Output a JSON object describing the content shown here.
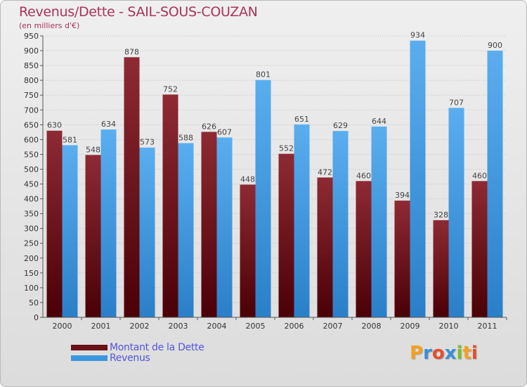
{
  "chart_data": {
    "type": "bar",
    "title": "Revenus/Dette - SAIL-SOUS-COUZAN",
    "subtitle": "(en milliers d'€)",
    "categories": [
      "2000",
      "2001",
      "2002",
      "2003",
      "2004",
      "2005",
      "2006",
      "2007",
      "2008",
      "2009",
      "2010",
      "2011"
    ],
    "series": [
      {
        "name": "Montant de la Dette",
        "color": "#7a1a24",
        "values": [
          630,
          548,
          878,
          752,
          626,
          448,
          552,
          472,
          460,
          394,
          328,
          460
        ]
      },
      {
        "name": "Revenus",
        "color": "#4a9fe2",
        "values": [
          581,
          634,
          573,
          588,
          607,
          801,
          651,
          629,
          644,
          934,
          707,
          900
        ]
      }
    ],
    "ylim": [
      0,
      950
    ],
    "ytick_step": 50,
    "grid": true,
    "legend_position": "bottom-left"
  },
  "legend": {
    "items": [
      {
        "label": "Montant de la Dette",
        "color": "#6b1018"
      },
      {
        "label": "Revenus",
        "color": "#3d96dd"
      }
    ]
  },
  "logo": {
    "text": "Proxiti",
    "colors": [
      "#f4a020",
      "#3a8fd8",
      "#e84d2c",
      "#3a8fd8",
      "#7bbf2a",
      "#f4a020",
      "#e84d2c"
    ]
  }
}
